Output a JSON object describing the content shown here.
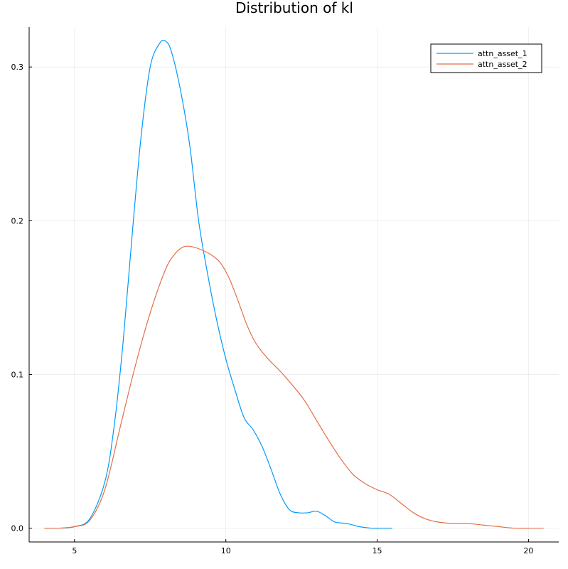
{
  "chart_data": {
    "type": "line",
    "title": "Distribution of kl",
    "xlabel": "",
    "ylabel": "",
    "xlim": [
      3.5,
      21
    ],
    "ylim": [
      -0.009,
      0.326
    ],
    "xticks": [
      5,
      10,
      15,
      20
    ],
    "xtick_labels": [
      "5",
      "10",
      "15",
      "20"
    ],
    "yticks": [
      0.0,
      0.1,
      0.2,
      0.3
    ],
    "ytick_labels": [
      "0.0",
      "0.1",
      "0.2",
      "0.3"
    ],
    "grid": true,
    "legend_position": "top-right",
    "series": [
      {
        "name": "attn_asset_1",
        "color": "#009AFA",
        "x": [
          4.6,
          5.0,
          5.5,
          6.0,
          6.3,
          6.6,
          6.9,
          7.2,
          7.5,
          7.8,
          8.0,
          8.2,
          8.5,
          8.8,
          9.1,
          9.4,
          9.7,
          10.0,
          10.3,
          10.6,
          10.9,
          11.2,
          11.5,
          11.8,
          12.1,
          12.4,
          12.7,
          13.0,
          13.3,
          13.6,
          14.0,
          14.4,
          14.8,
          15.1,
          15.5
        ],
        "values": [
          0.0,
          0.001,
          0.006,
          0.03,
          0.065,
          0.12,
          0.19,
          0.255,
          0.3,
          0.315,
          0.317,
          0.31,
          0.285,
          0.25,
          0.2,
          0.165,
          0.135,
          0.11,
          0.09,
          0.072,
          0.064,
          0.053,
          0.038,
          0.022,
          0.012,
          0.01,
          0.01,
          0.011,
          0.008,
          0.004,
          0.003,
          0.001,
          0.0,
          0.0,
          0.0
        ]
      },
      {
        "name": "attn_asset_2",
        "color": "#E26F46",
        "x": [
          4.0,
          4.5,
          5.0,
          5.5,
          6.0,
          6.5,
          7.0,
          7.5,
          8.0,
          8.3,
          8.6,
          8.9,
          9.2,
          9.5,
          9.8,
          10.1,
          10.4,
          10.7,
          11.0,
          11.4,
          11.8,
          12.2,
          12.6,
          13.0,
          13.4,
          13.8,
          14.2,
          14.6,
          15.0,
          15.4,
          15.8,
          16.2,
          16.6,
          17.0,
          17.5,
          18.0,
          18.5,
          19.0,
          19.5,
          20.0,
          20.5
        ],
        "values": [
          0.0,
          0.0,
          0.001,
          0.005,
          0.025,
          0.065,
          0.105,
          0.14,
          0.168,
          0.178,
          0.183,
          0.183,
          0.181,
          0.178,
          0.173,
          0.163,
          0.148,
          0.132,
          0.12,
          0.11,
          0.102,
          0.093,
          0.083,
          0.07,
          0.057,
          0.045,
          0.035,
          0.029,
          0.025,
          0.022,
          0.016,
          0.01,
          0.006,
          0.004,
          0.003,
          0.003,
          0.002,
          0.001,
          0.0,
          0.0,
          0.0
        ]
      }
    ]
  }
}
